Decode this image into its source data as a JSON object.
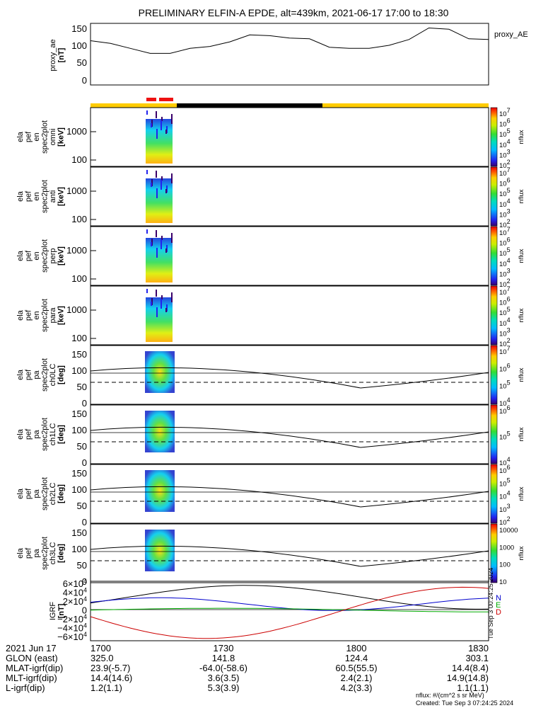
{
  "title": "PRELIMINARY ELFIN-A EPDE, alt=439km, 2021-06-17 17:00 to 18:30",
  "chart_data": [
    {
      "type": "line",
      "id": "proxy_ae",
      "ylabel": [
        "proxy_ae",
        "[nT]"
      ],
      "legend": "proxy_AE",
      "ylim": [
        0,
        160
      ],
      "yticks": [
        "150",
        "100",
        "50",
        "0"
      ],
      "x": [
        0,
        0.05,
        0.1,
        0.15,
        0.2,
        0.25,
        0.3,
        0.35,
        0.4,
        0.45,
        0.5,
        0.55,
        0.6,
        0.65,
        0.7,
        0.75,
        0.8,
        0.85,
        0.9,
        0.95,
        1.0
      ],
      "y": [
        115,
        108,
        95,
        82,
        82,
        95,
        100,
        112,
        130,
        128,
        122,
        120,
        98,
        95,
        95,
        103,
        118,
        148,
        145,
        120,
        118
      ]
    },
    {
      "type": "heatmap",
      "id": "spec-omni",
      "ylabel": [
        "ela",
        "pef",
        "en",
        "spec2plot",
        "omni",
        "[keV]"
      ],
      "yticks": [
        "1000",
        "100"
      ],
      "colorbar": {
        "ticks": [
          "10^7",
          "10^6",
          "10^5",
          "10^4",
          "10^3",
          "10^2"
        ],
        "label": "nflux"
      }
    },
    {
      "type": "heatmap",
      "id": "spec-anti",
      "ylabel": [
        "ela",
        "pef",
        "en",
        "spec2plot",
        "anti",
        "[keV]"
      ],
      "yticks": [
        "1000",
        "100"
      ],
      "colorbar": {
        "ticks": [
          "10^7",
          "10^6",
          "10^5",
          "10^4",
          "10^3",
          "10^2"
        ],
        "label": "nflux"
      }
    },
    {
      "type": "heatmap",
      "id": "spec-perp",
      "ylabel": [
        "ela",
        "pef",
        "en",
        "spec2plot",
        "perp",
        "[keV]"
      ],
      "yticks": [
        "1000",
        "100"
      ],
      "colorbar": {
        "ticks": [
          "10^7",
          "10^6",
          "10^5",
          "10^4",
          "10^3",
          "10^2"
        ],
        "label": "nflux"
      }
    },
    {
      "type": "heatmap",
      "id": "spec-para",
      "ylabel": [
        "ela",
        "pef",
        "en",
        "spec2plot",
        "para",
        "[keV]"
      ],
      "yticks": [
        "1000",
        "100"
      ],
      "colorbar": {
        "ticks": [
          "10^7",
          "10^6",
          "10^5",
          "10^4",
          "10^3",
          "10^2"
        ],
        "label": "nflux"
      }
    },
    {
      "type": "heatmap",
      "id": "pa-ch0",
      "ylabel": [
        "ela",
        "pef",
        "pa",
        "spec2plot",
        "ch0LC",
        "[deg]"
      ],
      "yticks": [
        "150",
        "100",
        "50",
        "0"
      ],
      "colorbar": {
        "ticks": [
          "10^7",
          "10^6",
          "10^5",
          "10^4"
        ],
        "label": "nflux"
      }
    },
    {
      "type": "heatmap",
      "id": "pa-ch1",
      "ylabel": [
        "ela",
        "pef",
        "pa",
        "spec2plot",
        "ch1LC",
        "[deg]"
      ],
      "yticks": [
        "150",
        "100",
        "50",
        "0"
      ],
      "colorbar": {
        "ticks": [
          "10^6",
          "10^5",
          "10^4"
        ],
        "label": "nflux"
      }
    },
    {
      "type": "heatmap",
      "id": "pa-ch2",
      "ylabel": [
        "ela",
        "pef",
        "pa",
        "spec2plot",
        "ch2LC",
        "[deg]"
      ],
      "yticks": [
        "150",
        "100",
        "50",
        "0"
      ],
      "colorbar": {
        "ticks": [
          "10^6",
          "10^5",
          "10^4",
          "10^3",
          "10^2"
        ],
        "label": "nflux"
      }
    },
    {
      "type": "heatmap",
      "id": "pa-ch3",
      "ylabel": [
        "ela",
        "pef",
        "pa",
        "spec2plot",
        "ch3LC",
        "[deg]"
      ],
      "yticks": [
        "150",
        "100",
        "50",
        "0"
      ],
      "colorbar": {
        "ticks": [
          "10000",
          "1000",
          "100",
          "10"
        ],
        "label": "nflux"
      }
    },
    {
      "type": "line",
      "id": "igrf",
      "ylabel": [
        "IGRF",
        "[nT]"
      ],
      "ylim": [
        -65000,
        65000
      ],
      "yticks": [
        "6×10^4",
        "4×10^4",
        "2×10^4",
        "0",
        "−2×10^4",
        "−4×10^4",
        "−6×10^4"
      ],
      "legend": [
        "N",
        "E",
        "D"
      ],
      "series_colors": {
        "N": "#0000cc",
        "E": "#00aa00",
        "D": "#cc0000",
        "total": "#000000"
      }
    }
  ],
  "xaxis": {
    "rows": [
      {
        "label": "2021 Jun 17",
        "values": [
          "1700",
          "1730",
          "1800",
          "1830"
        ]
      },
      {
        "label": "GLON (east)",
        "values": [
          "325.0",
          "141.8",
          "124.4",
          "303.1"
        ]
      },
      {
        "label": "MLAT-igrf(dip)",
        "values": [
          "23.9(-5.7)",
          "-64.0(-58.6)",
          "60.5(55.5)",
          "14.4(8.4)"
        ]
      },
      {
        "label": "MLT-igrf(dip)",
        "values": [
          "14.4(14.6)",
          "3.6(3.5)",
          "2.4(2.1)",
          "14.9(14.8)"
        ]
      },
      {
        "label": "L-igrf(dip)",
        "values": [
          "1.2(1.1)",
          "5.3(3.9)",
          "4.2(3.3)",
          "1.1(1.1)"
        ]
      }
    ]
  },
  "side_stamp": "Tue Sep  3 00:24:25 2024",
  "footer": {
    "units": "nflux: #/(cm^2 s sr MeV)",
    "created": "Created: Tue Sep  3 07:24:25 2024"
  },
  "colors": {
    "status_yellow": "#ffcc00",
    "status_black": "#000000",
    "status_red": "#ee1111"
  }
}
